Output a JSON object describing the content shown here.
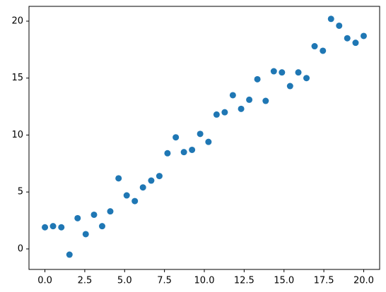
{
  "chart_data": {
    "type": "scatter",
    "color": "#1f77b4",
    "grid": false,
    "x": [
      0,
      0.51,
      1.03,
      1.54,
      2.05,
      2.56,
      3.08,
      3.59,
      4.1,
      4.62,
      5.13,
      5.64,
      6.15,
      6.67,
      7.18,
      7.69,
      8.21,
      8.72,
      9.23,
      9.74,
      10.26,
      10.77,
      11.28,
      11.79,
      12.31,
      12.82,
      13.33,
      13.85,
      14.36,
      14.87,
      15.38,
      15.9,
      16.41,
      16.92,
      17.44,
      17.95,
      18.46,
      18.97,
      19.49,
      20
    ],
    "values": [
      1.9,
      2.0,
      1.9,
      -0.5,
      2.7,
      1.3,
      3.0,
      2.0,
      3.3,
      6.2,
      4.7,
      4.2,
      5.4,
      6.0,
      6.4,
      8.4,
      9.8,
      8.5,
      8.7,
      10.1,
      9.4,
      11.8,
      12.0,
      13.5,
      12.3,
      13.1,
      14.9,
      13.0,
      15.6,
      15.5,
      14.3,
      15.5,
      15.0,
      17.8,
      17.4,
      20.2,
      19.6,
      18.5,
      18.1,
      18.7
    ],
    "xlim": [
      -1.0,
      21.0
    ],
    "ylim": [
      -1.8,
      21.3
    ],
    "xticks": [
      {
        "value": 0,
        "label": "0.0"
      },
      2.5,
      {
        "value": 5,
        "label": "5.0"
      },
      7.5,
      {
        "value": 10,
        "label": "10.0"
      },
      12.5,
      {
        "value": 15,
        "label": "15.0"
      },
      17.5,
      {
        "value": 20,
        "label": "20.0"
      }
    ],
    "yticks": [
      0,
      5,
      10,
      15,
      20
    ]
  }
}
